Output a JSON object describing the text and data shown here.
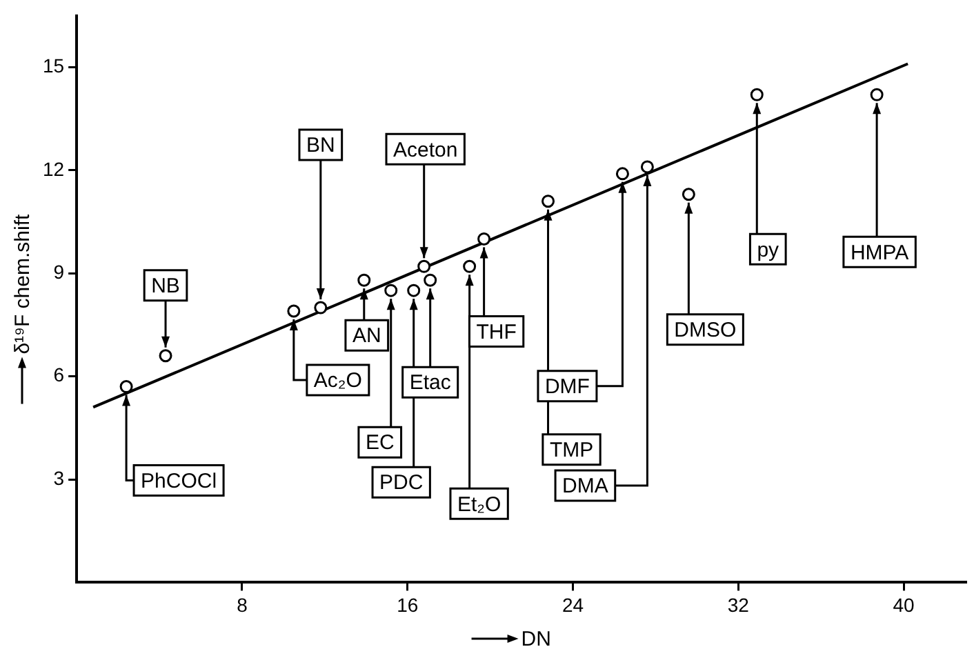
{
  "chart_data": {
    "type": "scatter",
    "xlabel": "DN",
    "ylabel": "δ¹⁹F chem.shift",
    "xlim": [
      0,
      43
    ],
    "ylim": [
      0,
      16.5
    ],
    "xticks": [
      8,
      16,
      24,
      32,
      40
    ],
    "yticks": [
      3,
      6,
      9,
      12,
      15
    ],
    "grid": false,
    "legend": false,
    "marker": "circle",
    "series": [
      {
        "type": "scatter",
        "color": "#000000",
        "x": [
          2.4,
          4.3,
          10.5,
          11.8,
          13.9,
          15.2,
          16.3,
          16.8,
          17.1,
          19.0,
          19.7,
          22.8,
          26.4,
          27.6,
          29.6,
          32.9,
          38.7
        ],
        "values": [
          5.7,
          6.6,
          7.9,
          8.0,
          8.8,
          8.5,
          8.5,
          9.2,
          8.8,
          9.2,
          10.0,
          11.1,
          11.9,
          12.1,
          11.3,
          14.2,
          14.2
        ]
      },
      {
        "type": "line",
        "color": "#000000",
        "marker": "none",
        "x": [
          0.8,
          40.2
        ],
        "values": [
          5.1,
          15.1
        ]
      }
    ],
    "annotations": [
      {
        "text": "PhCOCl",
        "x": 2.4,
        "y": 5.7
      },
      {
        "text": "NB",
        "x": 4.3,
        "y": 6.6
      },
      {
        "text": "Ac₂O",
        "x": 10.5,
        "y": 7.9
      },
      {
        "text": "BN",
        "x": 11.8,
        "y": 8.0
      },
      {
        "text": "AN",
        "x": 13.9,
        "y": 8.8
      },
      {
        "text": "EC",
        "x": 15.2,
        "y": 8.5
      },
      {
        "text": "PDC",
        "x": 16.3,
        "y": 8.5
      },
      {
        "text": "Aceton",
        "x": 16.8,
        "y": 9.2
      },
      {
        "text": "Etac",
        "x": 17.1,
        "y": 8.8
      },
      {
        "text": "Et₂O",
        "x": 19.0,
        "y": 9.2
      },
      {
        "text": "THF",
        "x": 19.7,
        "y": 10.0
      },
      {
        "text": "TMP",
        "x": 22.8,
        "y": 11.1
      },
      {
        "text": "DMF",
        "x": 26.4,
        "y": 11.9
      },
      {
        "text": "DMA",
        "x": 27.6,
        "y": 12.1
      },
      {
        "text": "DMSO",
        "x": 29.6,
        "y": 11.3
      },
      {
        "text": "py",
        "x": 32.9,
        "y": 14.2
      },
      {
        "text": "HMPA",
        "x": 38.7,
        "y": 14.2
      }
    ]
  }
}
